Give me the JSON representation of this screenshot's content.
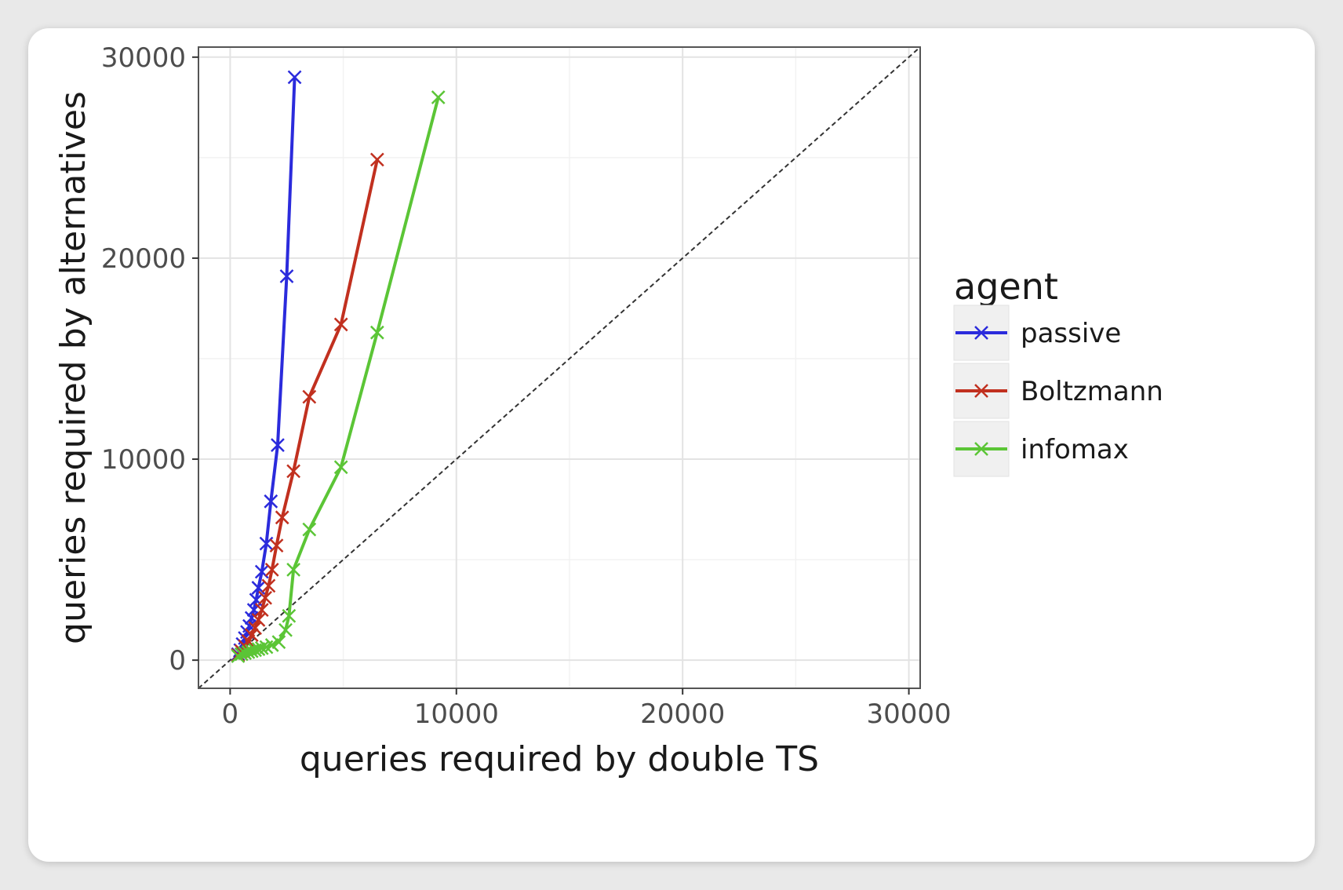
{
  "chart_data": {
    "type": "line",
    "title": "",
    "xlabel": "queries required by double TS",
    "ylabel": "queries required by alternatives",
    "xlim": [
      -1400,
      30500
    ],
    "ylim": [
      -1400,
      30500
    ],
    "xticks": [
      0,
      10000,
      20000,
      30000
    ],
    "yticks": [
      0,
      10000,
      20000,
      30000
    ],
    "grid": true,
    "reference_line": "y = x (dashed)",
    "legend": {
      "title": "agent",
      "placement": "right"
    },
    "series": [
      {
        "name": "passive",
        "color": "#2b2bdc",
        "marker": "x",
        "points": [
          [
            350,
            300
          ],
          [
            450,
            500
          ],
          [
            550,
            800
          ],
          [
            650,
            1100
          ],
          [
            750,
            1400
          ],
          [
            850,
            1700
          ],
          [
            950,
            2100
          ],
          [
            1050,
            2500
          ],
          [
            1150,
            3000
          ],
          [
            1250,
            3600
          ],
          [
            1400,
            4400
          ],
          [
            1600,
            5800
          ],
          [
            1800,
            7900
          ],
          [
            2100,
            10700
          ],
          [
            2500,
            19100
          ],
          [
            2850,
            29000
          ]
        ]
      },
      {
        "name": "Boltzmann",
        "color": "#c1301f",
        "marker": "x",
        "points": [
          [
            350,
            250
          ],
          [
            500,
            450
          ],
          [
            650,
            700
          ],
          [
            800,
            950
          ],
          [
            950,
            1250
          ],
          [
            1100,
            1600
          ],
          [
            1250,
            2000
          ],
          [
            1400,
            2500
          ],
          [
            1550,
            3100
          ],
          [
            1700,
            3700
          ],
          [
            1850,
            4500
          ],
          [
            2050,
            5700
          ],
          [
            2300,
            7100
          ],
          [
            2800,
            9400
          ],
          [
            3500,
            13100
          ],
          [
            4900,
            16700
          ],
          [
            6500,
            24900
          ]
        ]
      },
      {
        "name": "infomax",
        "color": "#5bc536",
        "marker": "x",
        "points": [
          [
            350,
            200
          ],
          [
            500,
            300
          ],
          [
            650,
            350
          ],
          [
            800,
            400
          ],
          [
            950,
            450
          ],
          [
            1100,
            500
          ],
          [
            1250,
            550
          ],
          [
            1400,
            600
          ],
          [
            1600,
            650
          ],
          [
            1850,
            750
          ],
          [
            2150,
            900
          ],
          [
            2450,
            1500
          ],
          [
            2600,
            2200
          ],
          [
            2800,
            4500
          ],
          [
            3500,
            6500
          ],
          [
            4900,
            9600
          ],
          [
            6500,
            16300
          ],
          [
            9200,
            28000
          ]
        ]
      }
    ]
  }
}
